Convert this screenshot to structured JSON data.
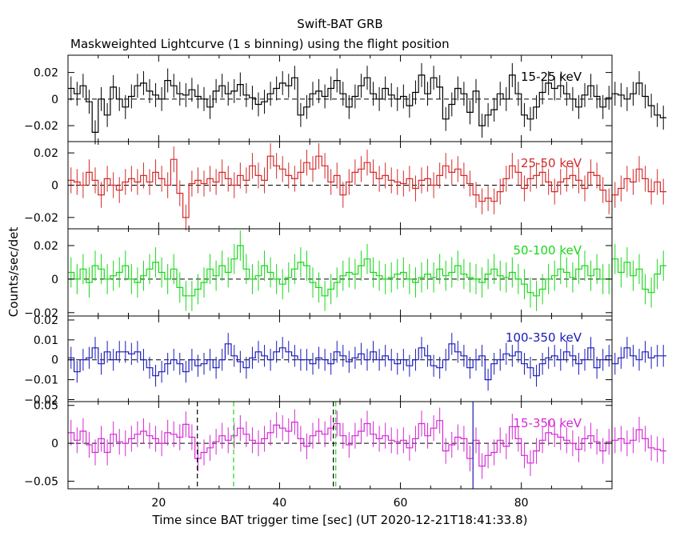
{
  "title": "Swift-BAT GRB",
  "subtitle": "Maskweighted Lightcurve (1 s binning) using the flight position",
  "xlabel": "Time since BAT trigger time [sec] (UT 2020-12-21T18:41:33.8)",
  "ylabel": "Counts/sec/det",
  "chart_data": {
    "type": "line",
    "xlim": [
      5,
      95
    ],
    "x_ticks": [
      20,
      40,
      60,
      80
    ],
    "x_tick_labels": [
      "20",
      "40",
      "60",
      "80"
    ],
    "panels": [
      {
        "name": "15-25 keV",
        "color": "#000000",
        "ylim": [
          -0.032,
          0.033
        ],
        "ticks": [
          0.02,
          0,
          -0.02
        ],
        "tick_labels": [
          "0.02",
          "0",
          "−0.02"
        ],
        "err": 0.009,
        "values": [
          0.008,
          0.004,
          0.01,
          -0.002,
          -0.025,
          0.0,
          -0.012,
          0.009,
          0.0,
          -0.006,
          0.002,
          0.01,
          0.012,
          0.006,
          0.003,
          0.0,
          0.014,
          0.01,
          0.004,
          0.003,
          0.007,
          0.002,
          0.0,
          -0.006,
          0.006,
          0.01,
          0.004,
          0.006,
          0.011,
          0.003,
          0.001,
          -0.004,
          -0.002,
          0.004,
          0.008,
          0.012,
          0.01,
          0.016,
          -0.012,
          -0.006,
          0.004,
          0.006,
          0.002,
          0.008,
          0.014,
          0.004,
          -0.006,
          0.002,
          0.01,
          0.016,
          0.004,
          0.0,
          0.008,
          0.003,
          0.0,
          0.002,
          -0.005,
          0.005,
          0.018,
          0.004,
          0.016,
          0.009,
          -0.015,
          -0.004,
          0.008,
          0.004,
          -0.01,
          0.006,
          -0.02,
          -0.012,
          -0.008,
          0.004,
          0.0,
          0.018,
          0.004,
          -0.012,
          -0.015,
          -0.006,
          0.005,
          0.012,
          0.008,
          0.01,
          0.004,
          0.0,
          -0.006,
          0.003,
          0.01,
          0.002,
          -0.006,
          0.001,
          0.004,
          0.003,
          0.0,
          0.004,
          0.012,
          0.002,
          -0.005,
          -0.012,
          -0.014
        ]
      },
      {
        "name": "25-50 keV",
        "color": "#d42a2a",
        "ylim": [
          -0.027,
          0.027
        ],
        "ticks": [
          0.02,
          0,
          -0.02
        ],
        "tick_labels": [
          "0.02",
          "0",
          "−0.02"
        ],
        "err": 0.008,
        "values": [
          0.003,
          0.002,
          0.0,
          0.008,
          0.003,
          -0.006,
          0.004,
          0.0,
          -0.003,
          0.002,
          0.004,
          0.002,
          0.006,
          0.002,
          0.008,
          0.004,
          0.0,
          0.016,
          -0.005,
          -0.02,
          0.001,
          0.003,
          0.001,
          0.004,
          0.002,
          0.008,
          0.004,
          0.0,
          0.006,
          0.003,
          0.012,
          0.006,
          0.003,
          0.018,
          0.012,
          0.01,
          0.006,
          0.004,
          0.008,
          0.014,
          0.01,
          0.018,
          0.012,
          0.002,
          0.006,
          -0.006,
          0.002,
          0.008,
          0.01,
          0.014,
          0.008,
          0.004,
          0.006,
          0.003,
          0.002,
          0.001,
          0.004,
          -0.002,
          0.003,
          0.004,
          0.0,
          0.006,
          0.012,
          0.008,
          0.01,
          0.006,
          0.001,
          -0.006,
          -0.01,
          -0.008,
          -0.01,
          -0.004,
          0.004,
          0.012,
          0.008,
          -0.002,
          0.004,
          0.006,
          0.008,
          0.002,
          -0.004,
          0.002,
          0.004,
          0.006,
          0.003,
          -0.002,
          0.008,
          0.006,
          -0.003,
          -0.01,
          -0.006,
          -0.002,
          0.004,
          0.002,
          0.01,
          0.004,
          -0.004,
          0.002,
          -0.004
        ]
      },
      {
        "name": "50-100 keV",
        "color": "#18d818",
        "ylim": [
          -0.022,
          0.03
        ],
        "ticks": [
          0.02,
          0,
          -0.02
        ],
        "tick_labels": [
          "0.02",
          "0",
          "−0.02"
        ],
        "err": 0.009,
        "values": [
          0.004,
          0.0,
          0.006,
          -0.002,
          0.008,
          0.006,
          0.0,
          0.002,
          0.004,
          0.008,
          0.0,
          -0.002,
          0.002,
          0.006,
          0.01,
          0.004,
          0.0,
          0.006,
          -0.005,
          -0.01,
          -0.01,
          -0.006,
          -0.002,
          0.006,
          0.002,
          0.008,
          0.004,
          0.012,
          0.02,
          0.006,
          0.0,
          0.002,
          0.008,
          0.004,
          0.0,
          -0.003,
          0.001,
          0.006,
          0.01,
          0.008,
          -0.002,
          -0.005,
          -0.01,
          -0.006,
          -0.002,
          0.002,
          0.004,
          0.003,
          0.008,
          0.012,
          0.004,
          0.002,
          0.0,
          0.001,
          0.003,
          0.004,
          0.0,
          -0.002,
          0.001,
          0.003,
          0.001,
          0.006,
          0.002,
          0.004,
          0.008,
          0.003,
          0.001,
          0.0,
          -0.002,
          0.003,
          0.006,
          0.002,
          0.001,
          0.004,
          0.0,
          -0.003,
          -0.008,
          -0.01,
          -0.006,
          0.0,
          0.002,
          0.006,
          0.004,
          0.001,
          0.006,
          0.008,
          0.002,
          0.006,
          0.0,
          0.0,
          0.012,
          0.004,
          0.01,
          0.002,
          0.006,
          -0.006,
          -0.008,
          0.003,
          0.008
        ]
      },
      {
        "name": "100-350 keV",
        "color": "#1a1ab8",
        "ylim": [
          -0.021,
          0.022
        ],
        "ticks": [
          0.02,
          0.01,
          0,
          -0.01,
          -0.02
        ],
        "tick_labels": [
          "0.02",
          "0.01",
          "0",
          "−0.01",
          "−0.02"
        ],
        "err": 0.0055,
        "values": [
          0.001,
          -0.006,
          0.0,
          0.001,
          0.006,
          -0.002,
          0.004,
          0.0,
          0.004,
          0.004,
          0.003,
          0.004,
          0.0,
          -0.004,
          -0.008,
          -0.006,
          -0.002,
          0.0,
          -0.002,
          -0.006,
          0.0,
          -0.003,
          -0.002,
          0.0,
          -0.004,
          0.0,
          0.008,
          0.002,
          -0.001,
          -0.004,
          0.001,
          0.004,
          0.002,
          0.0,
          0.004,
          0.006,
          0.004,
          0.002,
          0.0,
          0.0,
          -0.002,
          0.001,
          0.0,
          -0.002,
          0.004,
          0.002,
          -0.001,
          0.001,
          0.003,
          0.0,
          0.004,
          0.0,
          0.002,
          0.0,
          -0.002,
          0.0,
          -0.003,
          0.0,
          0.006,
          0.002,
          -0.003,
          -0.004,
          0.0,
          0.008,
          0.004,
          0.002,
          -0.004,
          0.0,
          0.002,
          -0.01,
          -0.002,
          0.0,
          0.003,
          0.002,
          0.004,
          -0.002,
          -0.004,
          -0.008,
          -0.002,
          0.001,
          0.002,
          0.0,
          0.004,
          0.002,
          -0.002,
          0.0,
          0.006,
          -0.004,
          0.0,
          0.002,
          -0.002,
          0.001,
          0.006,
          0.002,
          0.0,
          0.004,
          0.001,
          0.002,
          0.002
        ]
      },
      {
        "name": "15-350 keV",
        "color": "#d42ad4",
        "ylim": [
          -0.06,
          0.055
        ],
        "ticks": [
          0.05,
          0,
          -0.05
        ],
        "tick_labels": [
          "0.05",
          "0",
          "−0.05"
        ],
        "err": 0.017,
        "values": [
          0.014,
          0.004,
          0.016,
          -0.002,
          -0.012,
          0.006,
          -0.012,
          0.012,
          0.002,
          0.0,
          0.006,
          0.012,
          0.016,
          0.01,
          0.006,
          0.0,
          0.014,
          0.012,
          0.008,
          0.025,
          0.008,
          -0.02,
          -0.012,
          -0.006,
          0.002,
          0.01,
          0.004,
          0.01,
          0.02,
          0.012,
          0.004,
          0.0,
          0.006,
          0.014,
          0.024,
          0.02,
          0.016,
          0.028,
          0.006,
          -0.004,
          0.01,
          0.016,
          0.012,
          0.02,
          0.026,
          0.01,
          -0.002,
          0.01,
          0.016,
          0.026,
          0.012,
          0.006,
          0.01,
          0.004,
          0.002,
          0.004,
          -0.006,
          0.006,
          0.026,
          0.01,
          0.02,
          0.03,
          -0.01,
          -0.002,
          0.008,
          0.006,
          -0.02,
          0.004,
          -0.03,
          -0.016,
          -0.012,
          0.004,
          -0.004,
          0.022,
          0.006,
          -0.016,
          -0.026,
          -0.01,
          0.004,
          0.014,
          0.012,
          0.008,
          0.004,
          0.0,
          -0.008,
          0.006,
          0.01,
          0.002,
          -0.01,
          0.002,
          0.004,
          0.006,
          0.0,
          0.004,
          0.018,
          0.006,
          -0.006,
          -0.008,
          -0.01
        ]
      }
    ],
    "markers": [
      {
        "x": 26.4,
        "color": "#000000",
        "style": "dashed"
      },
      {
        "x": 32.4,
        "color": "#18d818",
        "style": "dashed"
      },
      {
        "x": 48.9,
        "color": "#000000",
        "style": "dashed"
      },
      {
        "x": 49.3,
        "color": "#18d818",
        "style": "dashed"
      },
      {
        "x": 72.0,
        "color": "#1a1ab8",
        "style": "solid"
      }
    ]
  }
}
